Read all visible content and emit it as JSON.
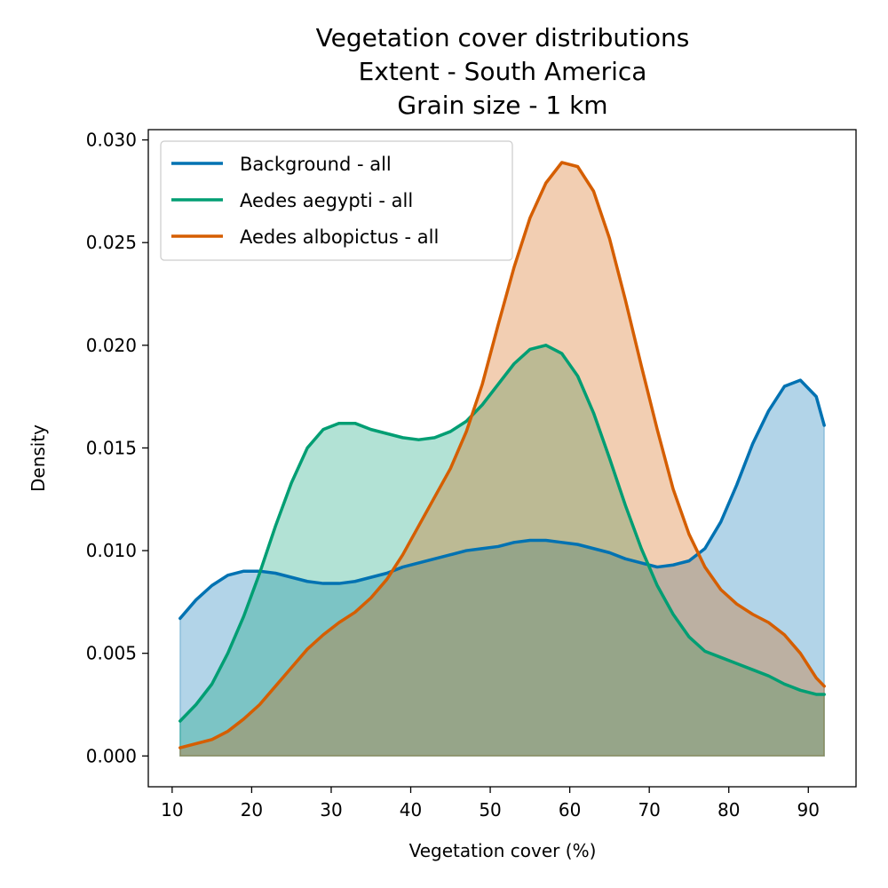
{
  "chart_data": {
    "type": "area",
    "title_lines": [
      "Vegetation cover distributions",
      "Extent - South America",
      "Grain size - 1 km"
    ],
    "xlabel": "Vegetation cover (%)",
    "ylabel": "Density",
    "xlim": [
      7,
      96
    ],
    "ylim": [
      -0.0015,
      0.0305
    ],
    "xticks": [
      10,
      20,
      30,
      40,
      50,
      60,
      70,
      80,
      90
    ],
    "yticks": [
      0.0,
      0.005,
      0.01,
      0.015,
      0.02,
      0.025,
      0.03
    ],
    "ytick_labels": [
      "0.000",
      "0.005",
      "0.010",
      "0.015",
      "0.020",
      "0.025",
      "0.030"
    ],
    "grid": false,
    "legend_position": "upper-left",
    "x": [
      11,
      13,
      15,
      17,
      19,
      21,
      23,
      25,
      27,
      29,
      31,
      33,
      35,
      37,
      39,
      41,
      43,
      45,
      47,
      49,
      51,
      53,
      55,
      57,
      59,
      61,
      63,
      65,
      67,
      69,
      71,
      73,
      75,
      77,
      79,
      81,
      83,
      85,
      87,
      89,
      91,
      92
    ],
    "series": [
      {
        "name": "Background - all",
        "color": "#0072b2",
        "values": [
          0.0067,
          0.0076,
          0.0083,
          0.0088,
          0.009,
          0.009,
          0.0089,
          0.0087,
          0.0085,
          0.0084,
          0.0084,
          0.0085,
          0.0087,
          0.0089,
          0.0092,
          0.0094,
          0.0096,
          0.0098,
          0.01,
          0.0101,
          0.0102,
          0.0104,
          0.0105,
          0.0105,
          0.0104,
          0.0103,
          0.0101,
          0.0099,
          0.0096,
          0.0094,
          0.0092,
          0.0093,
          0.0095,
          0.0101,
          0.0114,
          0.0132,
          0.0152,
          0.0168,
          0.018,
          0.0183,
          0.0175,
          0.0161
        ]
      },
      {
        "name": "Aedes aegypti - all",
        "color": "#009e73",
        "values": [
          0.0017,
          0.0025,
          0.0035,
          0.005,
          0.0068,
          0.0089,
          0.0112,
          0.0133,
          0.015,
          0.0159,
          0.0162,
          0.0162,
          0.0159,
          0.0157,
          0.0155,
          0.0154,
          0.0155,
          0.0158,
          0.0163,
          0.0171,
          0.0181,
          0.0191,
          0.0198,
          0.02,
          0.0196,
          0.0185,
          0.0167,
          0.0145,
          0.0122,
          0.0101,
          0.0083,
          0.0069,
          0.0058,
          0.0051,
          0.0048,
          0.0045,
          0.0042,
          0.0039,
          0.0035,
          0.0032,
          0.003,
          0.003
        ]
      },
      {
        "name": "Aedes albopictus - all",
        "color": "#d55e00",
        "values": [
          0.0004,
          0.0006,
          0.0008,
          0.0012,
          0.0018,
          0.0025,
          0.0034,
          0.0043,
          0.0052,
          0.0059,
          0.0065,
          0.007,
          0.0077,
          0.0086,
          0.0098,
          0.0112,
          0.0126,
          0.014,
          0.0158,
          0.0181,
          0.021,
          0.0238,
          0.0262,
          0.0279,
          0.0289,
          0.0287,
          0.0275,
          0.0252,
          0.0222,
          0.019,
          0.0159,
          0.013,
          0.0108,
          0.0092,
          0.0081,
          0.0074,
          0.0069,
          0.0065,
          0.0059,
          0.005,
          0.0038,
          0.0034
        ]
      }
    ]
  }
}
